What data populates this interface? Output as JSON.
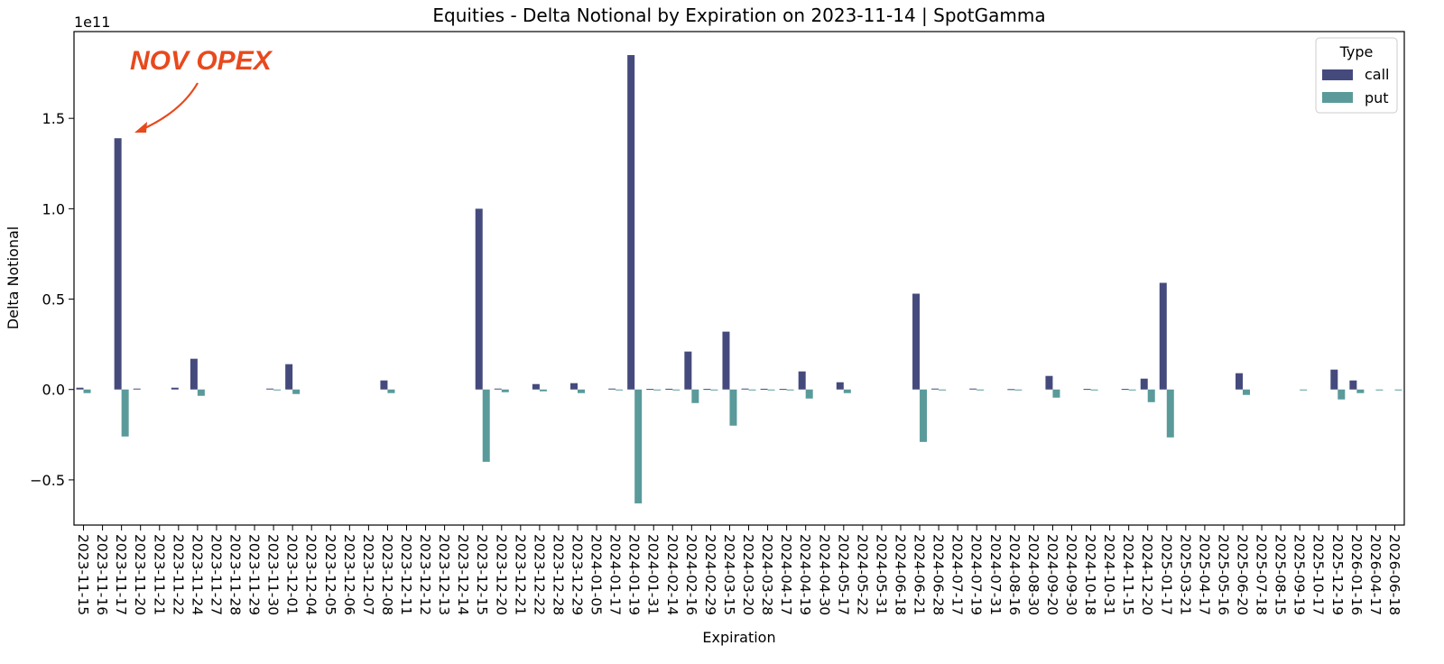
{
  "chart_data": {
    "type": "bar",
    "title": "Equities - Delta Notional by Expiration on 2023-11-14 | SpotGamma",
    "xlabel": "Expiration",
    "ylabel": "Delta Notional",
    "y_offset_label": "1e11",
    "y_scale": 100000000000,
    "ylim": [
      -0.75,
      1.98
    ],
    "yticks": [
      -0.5,
      0.0,
      0.5,
      1.0,
      1.5
    ],
    "ytick_labels": [
      "−0.5",
      "0.0",
      "0.5",
      "1.0",
      "1.5"
    ],
    "grid": false,
    "legend": {
      "title": "Type",
      "placement": "top-right"
    },
    "categories": [
      "2023-11-15",
      "2023-11-16",
      "2023-11-17",
      "2023-11-20",
      "2023-11-21",
      "2023-11-22",
      "2023-11-24",
      "2023-11-27",
      "2023-11-28",
      "2023-11-29",
      "2023-11-30",
      "2023-12-01",
      "2023-12-04",
      "2023-12-05",
      "2023-12-06",
      "2023-12-07",
      "2023-12-08",
      "2023-12-11",
      "2023-12-12",
      "2023-12-13",
      "2023-12-14",
      "2023-12-15",
      "2023-12-20",
      "2023-12-21",
      "2023-12-22",
      "2023-12-28",
      "2023-12-29",
      "2024-01-05",
      "2024-01-17",
      "2024-01-19",
      "2024-01-31",
      "2024-02-14",
      "2024-02-16",
      "2024-02-29",
      "2024-03-15",
      "2024-03-20",
      "2024-03-28",
      "2024-04-17",
      "2024-04-19",
      "2024-04-30",
      "2024-05-17",
      "2024-05-22",
      "2024-05-31",
      "2024-06-18",
      "2024-06-21",
      "2024-06-28",
      "2024-07-17",
      "2024-07-19",
      "2024-07-31",
      "2024-08-16",
      "2024-08-30",
      "2024-09-20",
      "2024-09-30",
      "2024-10-18",
      "2024-10-31",
      "2024-11-15",
      "2024-12-20",
      "2025-01-17",
      "2025-03-21",
      "2025-04-17",
      "2025-05-16",
      "2025-06-20",
      "2025-07-18",
      "2025-08-15",
      "2025-09-19",
      "2025-10-17",
      "2025-12-19",
      "2026-01-16",
      "2026-04-17",
      "2026-06-18"
    ],
    "series": [
      {
        "name": "call",
        "color": "#454a7d",
        "values": [
          0.01,
          0,
          1.39,
          0.005,
          0,
          0.01,
          0.17,
          0,
          0,
          0,
          0.005,
          0.14,
          0,
          0,
          0,
          0,
          0.05,
          0,
          0,
          0,
          0,
          1.0,
          0.005,
          0,
          0.03,
          0,
          0.035,
          0,
          0.005,
          1.85,
          0.003,
          0.004,
          0.21,
          0.003,
          0.32,
          0.005,
          0.004,
          0.003,
          0.1,
          0,
          0.04,
          0,
          0,
          0,
          0.53,
          0.005,
          0,
          0.005,
          0,
          0.002,
          0,
          0.075,
          0,
          0.003,
          0,
          0.003,
          0.06,
          0.59,
          0,
          0,
          0,
          0.09,
          0,
          0,
          0,
          0,
          0.11,
          0.05,
          0,
          0
        ]
      },
      {
        "name": "put",
        "color": "#5a9a9a",
        "values": [
          -0.02,
          0,
          -0.26,
          0,
          0,
          0,
          -0.035,
          0,
          0,
          0,
          -0.005,
          -0.025,
          0,
          0,
          0,
          0,
          -0.02,
          0,
          0,
          0,
          0,
          -0.4,
          -0.015,
          0,
          -0.01,
          0,
          -0.02,
          0,
          -0.005,
          -0.63,
          -0.003,
          -0.003,
          -0.075,
          -0.003,
          -0.2,
          -0.003,
          -0.003,
          -0.003,
          -0.05,
          0,
          -0.02,
          0,
          0,
          0,
          -0.29,
          -0.005,
          0,
          -0.005,
          0,
          -0.002,
          0,
          -0.045,
          0,
          -0.002,
          0,
          -0.003,
          -0.07,
          -0.265,
          0,
          0,
          0,
          -0.03,
          0,
          0,
          -0.002,
          0,
          -0.055,
          -0.02,
          -0.003,
          -0.003
        ]
      }
    ],
    "annotation": {
      "text": "NOV OPEX",
      "target_category": "2023-11-17",
      "color": "#e8491d"
    }
  }
}
